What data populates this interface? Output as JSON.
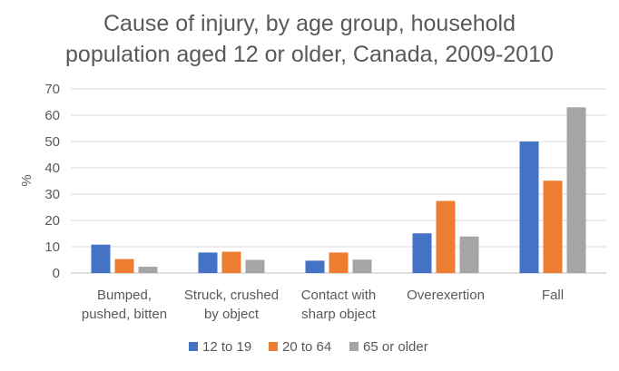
{
  "chart_data": {
    "type": "bar",
    "title": "Cause of injury, by age group, household population aged 12 or older, Canada, 2009-2010",
    "title_lines": [
      "Cause of injury, by age group, household",
      "population aged 12 or older, Canada, 2009-2010"
    ],
    "xlabel": "",
    "ylabel": "%",
    "ylim": [
      0,
      70
    ],
    "yticks": [
      0,
      10,
      20,
      30,
      40,
      50,
      60,
      70
    ],
    "grid": true,
    "legend_position": "bottom",
    "categories": [
      [
        "Bumped,",
        "pushed, bitten"
      ],
      [
        "Struck, crushed",
        "by object"
      ],
      [
        "Contact with",
        "sharp object"
      ],
      [
        "Overexertion"
      ],
      [
        "Fall"
      ]
    ],
    "series": [
      {
        "name": "12 to 19",
        "color": "#4472C4",
        "values": [
          10.8,
          7.8,
          4.7,
          15.1,
          50.0
        ]
      },
      {
        "name": "20 to 64",
        "color": "#ED7D31",
        "values": [
          5.3,
          8.1,
          7.8,
          27.4,
          35.1
        ]
      },
      {
        "name": "65 or older",
        "color": "#A5A5A5",
        "values": [
          2.4,
          5.0,
          5.1,
          13.9,
          63.0
        ]
      }
    ]
  }
}
